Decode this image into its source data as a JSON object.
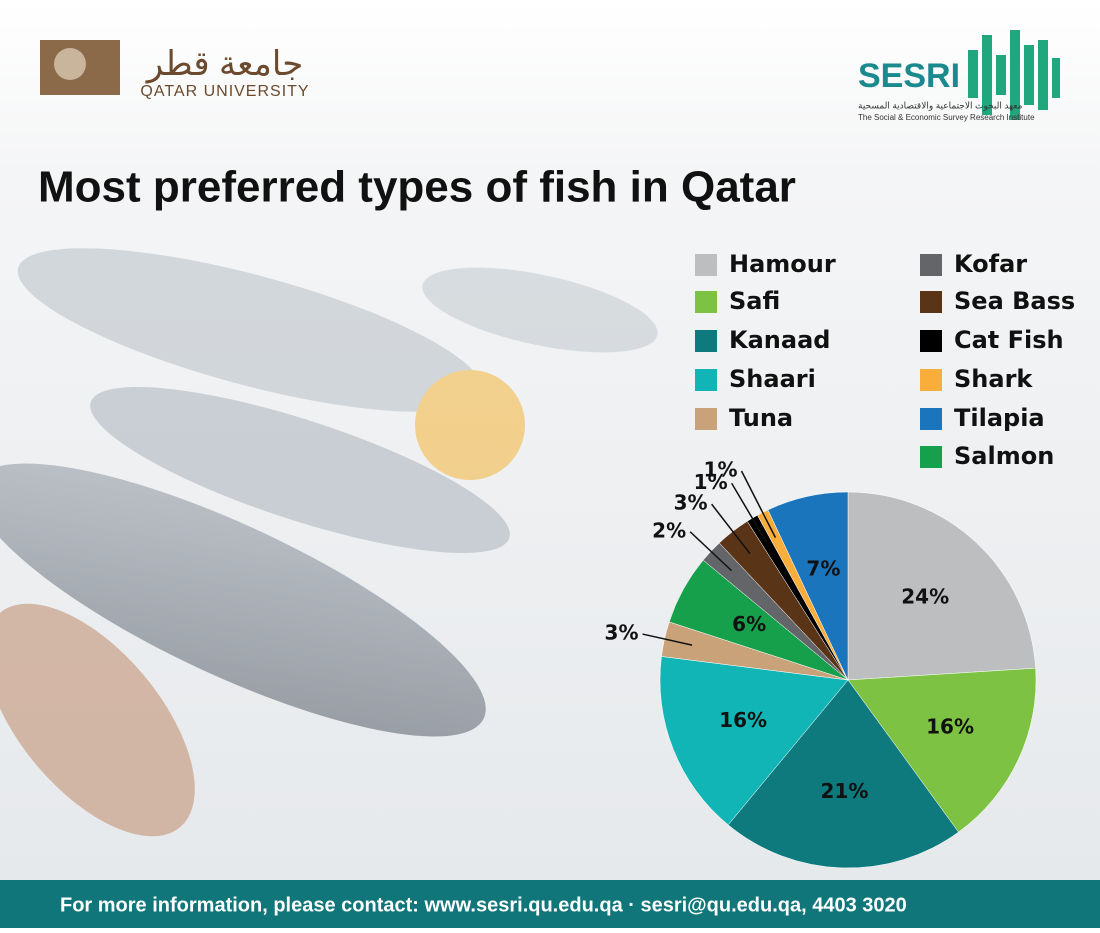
{
  "header": {
    "university_arabic": "جامعة قطر",
    "university": "QATAR UNIVERSITY",
    "institute": "SESRI",
    "institute_arabic": "معهد البحوث الاجتماعية والاقتصادية المسحية",
    "institute_full": "The Social & Economic Survey Research Institute"
  },
  "chart_data": {
    "type": "pie",
    "title": "Most preferred types of fish in Qatar",
    "categories": [
      "Hamour",
      "Safi",
      "Kanaad",
      "Shaari",
      "Tuna",
      "Salmon",
      "Kofar",
      "Sea Bass",
      "Cat Fish",
      "Shark",
      "Tilapia"
    ],
    "values": [
      24,
      16,
      21,
      16,
      3,
      6,
      2,
      3,
      1,
      1,
      7
    ],
    "value_labels": [
      "24%",
      "16%",
      "21%",
      "16%",
      "3%",
      "6%",
      "2%",
      "3%",
      "1%",
      "1%",
      "7%"
    ],
    "colors": [
      "#bcbec0",
      "#7dc242",
      "#0e7a7e",
      "#12b5b5",
      "#c9a27a",
      "#17a04b",
      "#646569",
      "#5a3417",
      "#000000",
      "#f9ae3b",
      "#1b75bc"
    ]
  },
  "footer": {
    "text": "For more information, please contact: www.sesri.qu.edu.qa · sesri@qu.edu.qa,  4403 3020"
  }
}
